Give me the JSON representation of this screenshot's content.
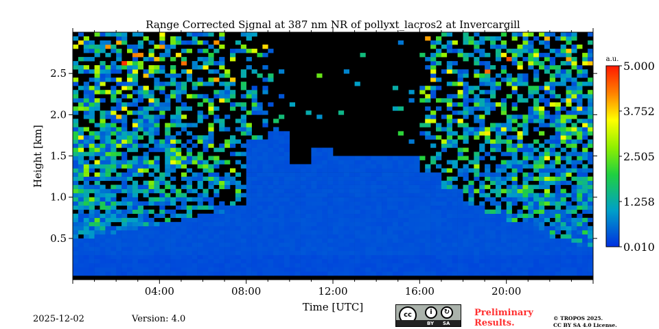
{
  "chart_data": {
    "type": "heatmap",
    "title": "Range Corrected Signal at 387 nm NR of pollyxt_lacros2 at Invercargill",
    "xlabel": "Time [UTC]",
    "ylabel": "Height [km]",
    "xlim": [
      0,
      24
    ],
    "ylim": [
      0,
      3.0
    ],
    "xticks": [
      {
        "v": 4,
        "label": "04:00"
      },
      {
        "v": 8,
        "label": "08:00"
      },
      {
        "v": 12,
        "label": "12:00"
      },
      {
        "v": 16,
        "label": "16:00"
      },
      {
        "v": 20,
        "label": "20:00"
      }
    ],
    "yticks": [
      {
        "v": 0.5,
        "label": "0.5"
      },
      {
        "v": 1.0,
        "label": "1.0"
      },
      {
        "v": 1.5,
        "label": "1.5"
      },
      {
        "v": 2.0,
        "label": "2.0"
      },
      {
        "v": 2.5,
        "label": "2.5"
      }
    ],
    "colorbar": {
      "unit": "a.u.",
      "min": 0.01,
      "max": 5.0,
      "ticks": [
        "0.010",
        "1.258",
        "2.505",
        "3.752",
        "5.000"
      ],
      "colormap": "jet"
    },
    "hours": [
      0,
      1,
      2,
      3,
      4,
      5,
      6,
      7,
      8,
      9,
      10,
      11,
      12,
      13,
      14,
      15,
      16,
      17,
      18,
      19,
      20,
      21,
      22,
      23
    ],
    "layer_top_km": [
      0.5,
      0.55,
      0.6,
      0.65,
      0.7,
      0.75,
      0.8,
      0.9,
      1.7,
      1.8,
      1.4,
      1.6,
      1.5,
      1.5,
      1.5,
      1.5,
      1.3,
      1.1,
      0.9,
      0.8,
      0.7,
      0.6,
      0.5,
      0.4
    ],
    "noise_above_layer": [
      0.9,
      0.9,
      0.85,
      0.8,
      0.75,
      0.7,
      0.6,
      0.5,
      0.35,
      0.1,
      0.02,
      0.02,
      0.02,
      0.02,
      0.02,
      0.05,
      0.4,
      0.5,
      0.6,
      0.7,
      0.8,
      0.85,
      0.9,
      0.9
    ],
    "layer_signal": 0.4
  },
  "footer": {
    "date": "2025-12-02",
    "version": "Version: 4.0",
    "preliminary": "Preliminary Results.",
    "copyright": "© TROPOS 2025.",
    "license": "CC BY SA 4.0 License.",
    "cc_by": "BY",
    "cc_sa": "SA",
    "cc": "cc"
  }
}
